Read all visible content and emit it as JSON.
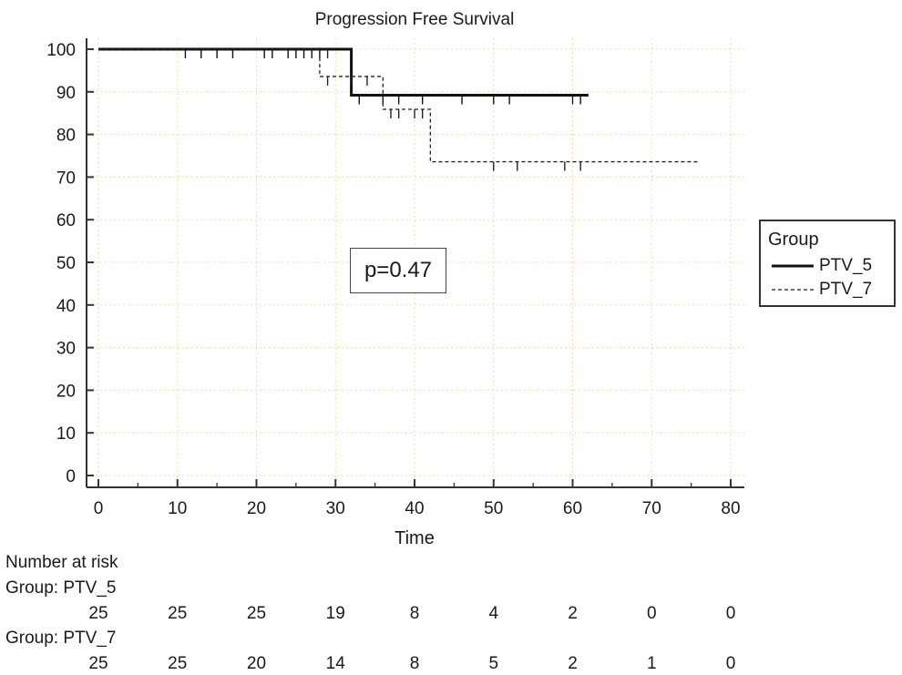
{
  "chart_data": {
    "type": "line",
    "subtype": "kaplan-meier",
    "title": "Progression Free Survival",
    "xlabel": "Time",
    "ylabel": "",
    "xlim": [
      0,
      80
    ],
    "ylim": [
      0,
      100
    ],
    "xticks": [
      0,
      10,
      20,
      30,
      40,
      50,
      60,
      70,
      80
    ],
    "yticks": [
      0,
      10,
      20,
      30,
      40,
      50,
      60,
      70,
      80,
      90,
      100
    ],
    "grid": true,
    "legend_title": "Group",
    "legend_position": "right",
    "annotation": "p=0.47",
    "series": [
      {
        "name": "PTV_5",
        "color": "#111111",
        "style": "solid",
        "steps": [
          [
            0,
            100
          ],
          [
            32,
            100
          ],
          [
            32,
            89.2
          ],
          [
            62,
            89.2
          ]
        ],
        "censored": [
          [
            11,
            100
          ],
          [
            13,
            100
          ],
          [
            15,
            100
          ],
          [
            17,
            100
          ],
          [
            21,
            100
          ],
          [
            22,
            100
          ],
          [
            24,
            100
          ],
          [
            25,
            100
          ],
          [
            26,
            100
          ],
          [
            27,
            100
          ],
          [
            28,
            100
          ],
          [
            33,
            89.2
          ],
          [
            36,
            89.2
          ],
          [
            38,
            89.2
          ],
          [
            41,
            89.2
          ],
          [
            46,
            89.2
          ],
          [
            50,
            89.2
          ],
          [
            52,
            89.2
          ],
          [
            60,
            89.2
          ],
          [
            61,
            89.2
          ]
        ]
      },
      {
        "name": "PTV_7",
        "color": "#222222",
        "style": "dashed",
        "steps": [
          [
            0,
            100
          ],
          [
            28,
            100
          ],
          [
            28,
            93.6
          ],
          [
            36,
            93.6
          ],
          [
            36,
            85.9
          ],
          [
            42,
            85.9
          ],
          [
            42,
            73.6
          ],
          [
            76,
            73.6
          ]
        ],
        "censored": [
          [
            29,
            100
          ],
          [
            29,
            93.6
          ],
          [
            32,
            93.6
          ],
          [
            34,
            93.6
          ],
          [
            37,
            85.9
          ],
          [
            38,
            85.9
          ],
          [
            40,
            85.9
          ],
          [
            41,
            85.9
          ],
          [
            50,
            73.6
          ],
          [
            53,
            73.6
          ],
          [
            59,
            73.6
          ],
          [
            61,
            73.6
          ]
        ]
      }
    ]
  },
  "risk_table": {
    "heading": "Number at risk",
    "times": [
      0,
      10,
      20,
      30,
      40,
      50,
      60,
      70,
      80
    ],
    "groups": [
      {
        "label": "Group: PTV_5",
        "counts": [
          "25",
          "25",
          "25",
          "19",
          "8",
          "4",
          "2",
          "0",
          "0"
        ]
      },
      {
        "label": "Group: PTV_7",
        "counts": [
          "25",
          "25",
          "20",
          "14",
          "8",
          "5",
          "2",
          "1",
          "0"
        ]
      }
    ]
  }
}
